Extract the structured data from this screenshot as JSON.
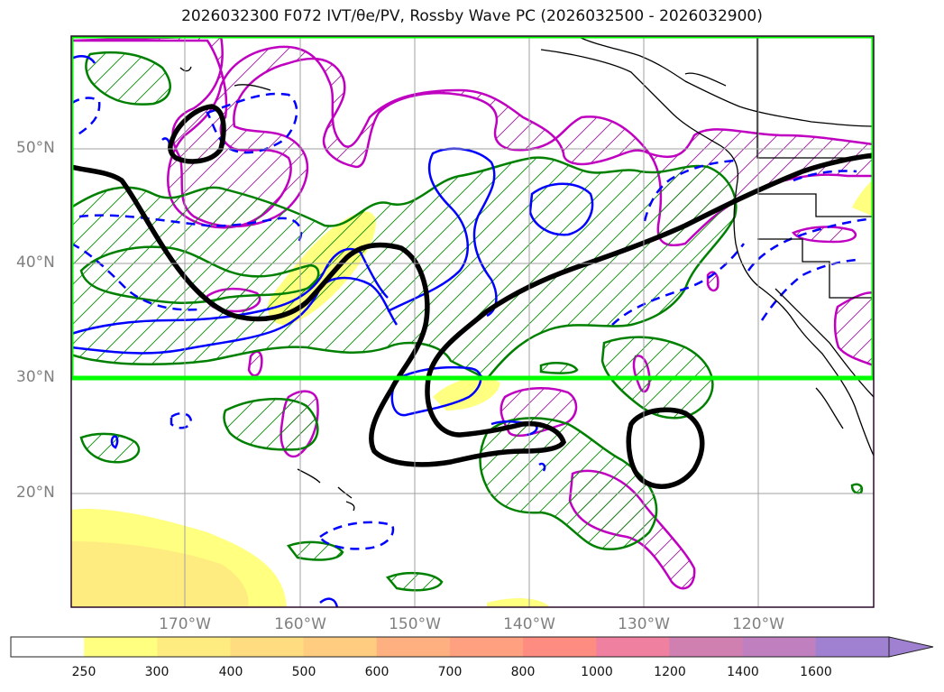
{
  "title": "2026032300 F072 IVT/θe/PV, Rossby Wave PC (2026032500 - 2026032900)",
  "latitude_labels": [
    "50°N",
    "40°N",
    "30°N",
    "20°N"
  ],
  "longitude_labels": [
    "170°W",
    "160°W",
    "150°W",
    "140°W",
    "130°W",
    "120°W"
  ],
  "colorbar": {
    "ticks": [
      "250",
      "300",
      "400",
      "500",
      "600",
      "700",
      "800",
      "1000",
      "1200",
      "1400",
      "1600"
    ],
    "colors": [
      "#ffffff",
      "#ffff80",
      "#ffec80",
      "#ffdc80",
      "#ffcc80",
      "#ffb080",
      "#ffa080",
      "#ff8c80",
      "#f080a0",
      "#d080b0",
      "#c080c0",
      "#a080d0"
    ],
    "extend": "max"
  },
  "highlight_box": {
    "color": "#00ff00",
    "lat_range": [
      30,
      60
    ],
    "lon_range": [
      -180,
      -110
    ]
  },
  "legend_colors": {
    "pv_contour": "#000000",
    "ivt_contour": "#008000",
    "theta_e_contour": "#0000ff",
    "rossby_pc_contour": "#c000c0",
    "coastline": "#000000",
    "grid": "#a0a0a0"
  }
}
